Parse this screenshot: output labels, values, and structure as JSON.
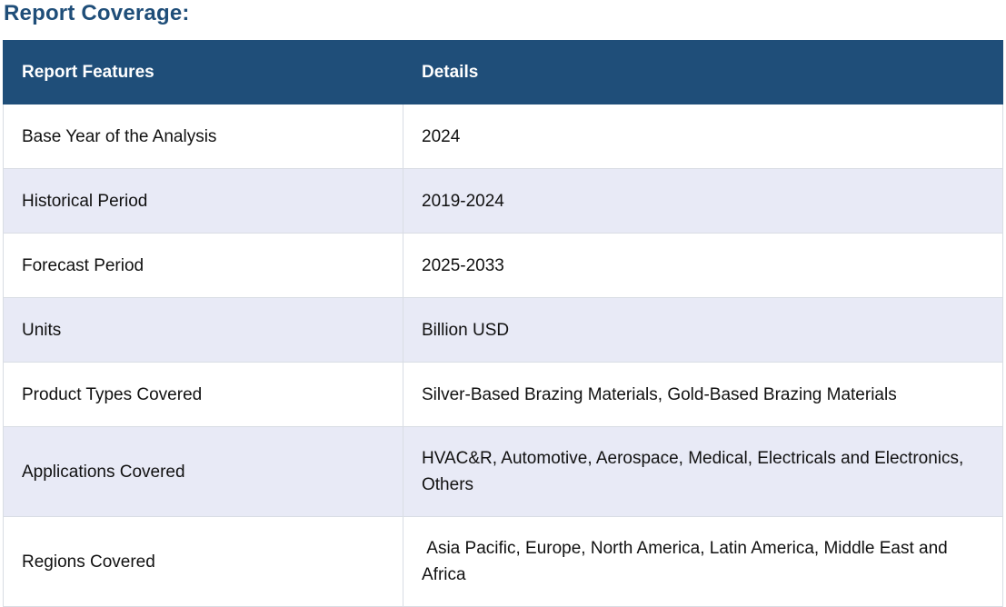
{
  "heading": "Report Coverage:",
  "table": {
    "headers": [
      "Report Features",
      "Details"
    ],
    "rows": [
      {
        "feature": "Base Year of the Analysis",
        "details": "2024"
      },
      {
        "feature": "Historical Period",
        "details": "2019-2024"
      },
      {
        "feature": "Forecast Period",
        "details": "2025-2033"
      },
      {
        "feature": "Units",
        "details": "Billion USD"
      },
      {
        "feature": "Product Types Covered",
        "details": "Silver-Based Brazing Materials, Gold-Based Brazing Materials"
      },
      {
        "feature": "Applications Covered",
        "details": "HVAC&R, Automotive, Aerospace, Medical, Electricals and Electronics, Others"
      },
      {
        "feature": "Regions Covered",
        "details": " Asia Pacific, Europe, North America, Latin America, Middle East and Africa"
      }
    ]
  },
  "colors": {
    "header_bg": "#1f4e79",
    "heading_text": "#1f4e79",
    "stripe_bg": "#e8eaf6"
  }
}
